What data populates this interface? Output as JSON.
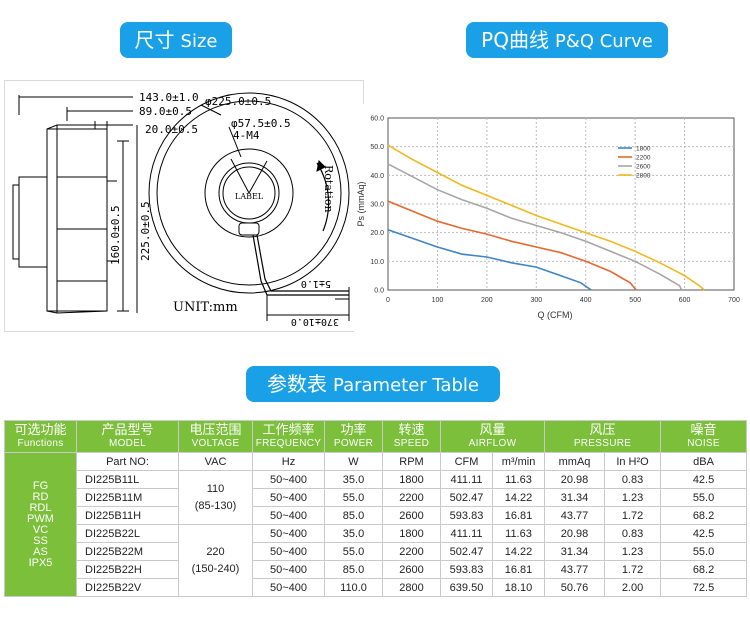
{
  "sections": {
    "size": {
      "cn": "尺寸",
      "en": "Size"
    },
    "pq": {
      "cn": "PQ曲线",
      "en": "P&Q Curve"
    },
    "params": {
      "cn": "参数表",
      "en": "Parameter Table"
    }
  },
  "drawing": {
    "dim_143": "143.0±1.0",
    "dim_89": "89.0±0.5",
    "dim_20": "20.0±0.5",
    "dim_160": "160.0±0.5",
    "dim_225h": "225.0±0.5",
    "dim_phi225": "φ225.0±0.5",
    "dim_phi57": "φ57.5±0.5",
    "dim_4m4": "4-M4",
    "label": "LABEL",
    "rotation": "Rotation",
    "unit": "UNIT:mm",
    "wire_5": "5±1.0",
    "wire_370": "370±10.0"
  },
  "chart_data": {
    "type": "line",
    "xlabel": "Q (CFM)",
    "ylabel": "Ps (mmAq)",
    "xlim": [
      0,
      700
    ],
    "ylim": [
      0,
      60
    ],
    "x_ticks": [
      "0",
      "100",
      "200",
      "300",
      "400",
      "500",
      "600",
      "700"
    ],
    "y_ticks": [
      "0.0",
      "10.0",
      "20.0",
      "30.0",
      "40.0",
      "50.0",
      "60.0"
    ],
    "legend_position": "top-right",
    "series": [
      {
        "name": "1800",
        "color": "#3f84c4",
        "points": [
          [
            0,
            21
          ],
          [
            50,
            18
          ],
          [
            100,
            15
          ],
          [
            150,
            12.5
          ],
          [
            200,
            11.5
          ],
          [
            250,
            9.5
          ],
          [
            300,
            8
          ],
          [
            350,
            5
          ],
          [
            390,
            2.5
          ],
          [
            411,
            0
          ]
        ]
      },
      {
        "name": "2200",
        "color": "#e3692e",
        "points": [
          [
            0,
            31
          ],
          [
            50,
            27.5
          ],
          [
            100,
            24
          ],
          [
            150,
            21.5
          ],
          [
            200,
            19.5
          ],
          [
            250,
            17
          ],
          [
            300,
            15
          ],
          [
            350,
            13
          ],
          [
            400,
            10
          ],
          [
            450,
            6.5
          ],
          [
            490,
            2.5
          ],
          [
            502,
            0
          ]
        ]
      },
      {
        "name": "2600",
        "color": "#a6a6a6",
        "points": [
          [
            0,
            44
          ],
          [
            50,
            39.5
          ],
          [
            100,
            35
          ],
          [
            150,
            31.5
          ],
          [
            200,
            28.5
          ],
          [
            250,
            25
          ],
          [
            300,
            22.5
          ],
          [
            350,
            20
          ],
          [
            400,
            17
          ],
          [
            450,
            13.5
          ],
          [
            500,
            10
          ],
          [
            550,
            5.5
          ],
          [
            590,
            1.5
          ],
          [
            594,
            0
          ]
        ]
      },
      {
        "name": "2800",
        "color": "#f1b81d",
        "points": [
          [
            0,
            50.5
          ],
          [
            50,
            45.5
          ],
          [
            100,
            41
          ],
          [
            150,
            36.5
          ],
          [
            200,
            33
          ],
          [
            250,
            29.5
          ],
          [
            300,
            26
          ],
          [
            350,
            23
          ],
          [
            400,
            20
          ],
          [
            450,
            17
          ],
          [
            500,
            13.5
          ],
          [
            550,
            9.5
          ],
          [
            600,
            5
          ],
          [
            630,
            1.5
          ],
          [
            640,
            0
          ]
        ]
      }
    ]
  },
  "table": {
    "headers": [
      {
        "cn": "可选功能",
        "en": "Functions"
      },
      {
        "cn": "产品型号",
        "en": "MODEL"
      },
      {
        "cn": "电压范围",
        "en": "VOLTAGE"
      },
      {
        "cn": "工作频率",
        "en": "FREQUENCY"
      },
      {
        "cn": "功率",
        "en": "POWER"
      },
      {
        "cn": "转速",
        "en": "SPEED"
      },
      {
        "cn": "风量",
        "en": "AIRFLOW"
      },
      {
        "cn": "风压",
        "en": "PRESSURE"
      },
      {
        "cn": "噪音",
        "en": "NOISE"
      }
    ],
    "units": [
      "Part NO:",
      "VAC",
      "Hz",
      "W",
      "RPM",
      "CFM",
      "m³/min",
      "mmAq",
      "In H²O",
      "dBA"
    ],
    "functions": [
      "FG",
      "RD",
      "RDL",
      "PWM",
      "VC",
      "SS",
      "AS",
      "IPX5"
    ],
    "voltage_groups": [
      {
        "v": "110",
        "range": "(85-130)"
      },
      {
        "v": "220",
        "range": "(150-240)"
      }
    ],
    "rows": [
      {
        "model": "DI225B11L",
        "freq": "50~400",
        "power": "35.0",
        "rpm": "1800",
        "cfm": "411.11",
        "m3": "11.63",
        "mmaq": "20.98",
        "inh2o": "0.83",
        "dba": "42.5"
      },
      {
        "model": "DI225B11M",
        "freq": "50~400",
        "power": "55.0",
        "rpm": "2200",
        "cfm": "502.47",
        "m3": "14.22",
        "mmaq": "31.34",
        "inh2o": "1.23",
        "dba": "55.0"
      },
      {
        "model": "DI225B11H",
        "freq": "50~400",
        "power": "85.0",
        "rpm": "2600",
        "cfm": "593.83",
        "m3": "16.81",
        "mmaq": "43.77",
        "inh2o": "1.72",
        "dba": "68.2"
      },
      {
        "model": "DI225B22L",
        "freq": "50~400",
        "power": "35.0",
        "rpm": "1800",
        "cfm": "411.11",
        "m3": "11.63",
        "mmaq": "20.98",
        "inh2o": "0.83",
        "dba": "42.5"
      },
      {
        "model": "DI225B22M",
        "freq": "50~400",
        "power": "55.0",
        "rpm": "2200",
        "cfm": "502.47",
        "m3": "14.22",
        "mmaq": "31.34",
        "inh2o": "1.23",
        "dba": "55.0"
      },
      {
        "model": "DI225B22H",
        "freq": "50~400",
        "power": "85.0",
        "rpm": "2600",
        "cfm": "593.83",
        "m3": "16.81",
        "mmaq": "43.77",
        "inh2o": "1.72",
        "dba": "68.2"
      },
      {
        "model": "DI225B22V",
        "freq": "50~400",
        "power": "110.0",
        "rpm": "2800",
        "cfm": "639.50",
        "m3": "18.10",
        "mmaq": "50.76",
        "inh2o": "2.00",
        "dba": "72.5"
      }
    ]
  }
}
